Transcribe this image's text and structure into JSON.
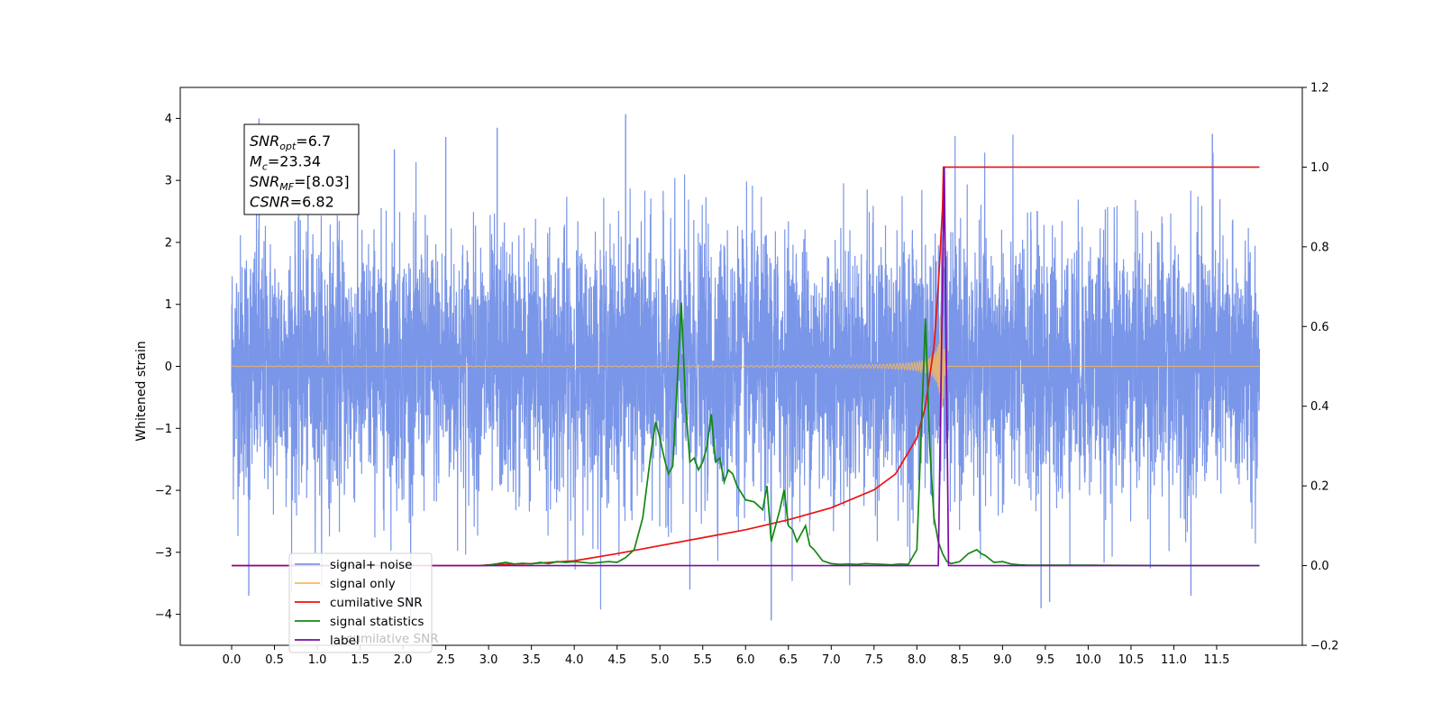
{
  "chart_data": {
    "type": "line",
    "title": "",
    "xlabel": "",
    "ylabel": "Whitened strain",
    "xlim": [
      -0.6,
      12.5
    ],
    "ylim": [
      -4.5,
      4.5
    ],
    "y2lim": [
      -0.2,
      1.2
    ],
    "xticks": [
      "0.0",
      "0.5",
      "1.0",
      "1.5",
      "2.0",
      "2.5",
      "3.0",
      "3.5",
      "4.0",
      "4.5",
      "5.0",
      "5.5",
      "6.0",
      "6.5",
      "7.0",
      "7.5",
      "8.0",
      "8.5",
      "9.0",
      "9.5",
      "10.0",
      "10.5",
      "11.0",
      "11.5"
    ],
    "yticks": [
      "−4",
      "−3",
      "−2",
      "−1",
      "0",
      "1",
      "2",
      "3",
      "4"
    ],
    "y2ticks": [
      "−0.2",
      "0.0",
      "0.2",
      "0.4",
      "0.6",
      "0.8",
      "1.0",
      "1.2"
    ],
    "grid": false,
    "legend_position": "lower-left",
    "annotation": {
      "lines": [
        {
          "name": "SNR",
          "sub": "opt",
          "value": "=6.7"
        },
        {
          "name": "M",
          "sub": "c",
          "value": "=23.34"
        },
        {
          "name": "SNR",
          "sub": "MF",
          "value": "=[8.03]"
        },
        {
          "name": "CSNR",
          "sub": "",
          "value": "=6.82"
        }
      ]
    },
    "legend_ghost": "cumilative SNR",
    "series": [
      {
        "name": "signal+ noise",
        "color": "#7a96e8",
        "axis": "left",
        "kind": "noise",
        "x_range": [
          0.0,
          12.0
        ],
        "typical_amplitude": 2.4,
        "peak_values": [
          {
            "x": 0.32,
            "y": 4.0
          },
          {
            "x": 4.6,
            "y": 4.07
          },
          {
            "x": 11.45,
            "y": 3.75
          },
          {
            "x": 3.1,
            "y": 3.85
          },
          {
            "x": 2.5,
            "y": 3.7
          },
          {
            "x": 1.9,
            "y": 3.5
          },
          {
            "x": 0.2,
            "y": -3.7
          },
          {
            "x": 6.3,
            "y": -4.1
          },
          {
            "x": 9.45,
            "y": -3.9
          },
          {
            "x": 9.55,
            "y": -3.8
          },
          {
            "x": 11.2,
            "y": -3.7
          },
          {
            "x": 5.35,
            "y": -3.6
          }
        ]
      },
      {
        "name": "signal only",
        "color": "#f5b95d",
        "axis": "left",
        "kind": "chirp",
        "x_range": [
          0.0,
          12.0
        ],
        "merger_x": 8.3,
        "peak_amplitude": 1.0
      },
      {
        "name": "cumilative SNR",
        "color": "#ee1111",
        "axis": "right",
        "x": [
          0,
          2.9,
          3.0,
          3.5,
          4.0,
          4.5,
          5.0,
          5.5,
          6.0,
          6.5,
          7.0,
          7.5,
          7.75,
          8.0,
          8.1,
          8.2,
          8.25,
          8.3,
          8.31,
          9.0,
          10.0,
          11.0,
          11.5,
          12.0
        ],
        "y": [
          0,
          0,
          0.002,
          0.005,
          0.012,
          0.03,
          0.05,
          0.07,
          0.09,
          0.115,
          0.145,
          0.19,
          0.23,
          0.32,
          0.4,
          0.55,
          0.7,
          0.9,
          1.0,
          1.0,
          1.0,
          1.0,
          1.0,
          1.0
        ]
      },
      {
        "name": "signal statistics",
        "color": "#118811",
        "axis": "right",
        "x": [
          2.9,
          3.0,
          3.2,
          3.3,
          3.4,
          3.5,
          3.6,
          3.7,
          3.8,
          3.9,
          4.0,
          4.2,
          4.4,
          4.5,
          4.6,
          4.7,
          4.8,
          4.9,
          4.95,
          5.0,
          5.05,
          5.1,
          5.15,
          5.2,
          5.25,
          5.3,
          5.35,
          5.4,
          5.45,
          5.5,
          5.55,
          5.6,
          5.65,
          5.7,
          5.75,
          5.8,
          5.85,
          5.9,
          6.0,
          6.1,
          6.2,
          6.25,
          6.3,
          6.35,
          6.4,
          6.45,
          6.5,
          6.55,
          6.6,
          6.7,
          6.75,
          6.8,
          6.9,
          7.0,
          7.1,
          7.2,
          7.3,
          7.4,
          7.5,
          7.6,
          7.7,
          7.8,
          7.9,
          8.0,
          8.1,
          8.15,
          8.2,
          8.25,
          8.3,
          8.35,
          8.4,
          8.5,
          8.6,
          8.7,
          8.75,
          8.8,
          8.9,
          9.0,
          9.1,
          9.2,
          9.3,
          9.5,
          10.0,
          11.0,
          12.0
        ],
        "y": [
          0.0,
          0.001,
          0.008,
          0.004,
          0.006,
          0.004,
          0.008,
          0.005,
          0.01,
          0.008,
          0.01,
          0.006,
          0.01,
          0.008,
          0.02,
          0.04,
          0.12,
          0.29,
          0.36,
          0.32,
          0.27,
          0.23,
          0.25,
          0.45,
          0.66,
          0.4,
          0.26,
          0.27,
          0.24,
          0.26,
          0.3,
          0.38,
          0.26,
          0.27,
          0.21,
          0.24,
          0.23,
          0.2,
          0.165,
          0.16,
          0.14,
          0.2,
          0.06,
          0.1,
          0.14,
          0.19,
          0.1,
          0.09,
          0.06,
          0.1,
          0.05,
          0.04,
          0.012,
          0.005,
          0.003,
          0.004,
          0.003,
          0.005,
          0.004,
          0.003,
          0.002,
          0.004,
          0.003,
          0.04,
          0.62,
          0.3,
          0.12,
          0.06,
          0.03,
          0.01,
          0.005,
          0.01,
          0.03,
          0.04,
          0.03,
          0.025,
          0.008,
          0.01,
          0.004,
          0.002,
          0.001,
          0.001,
          0.001,
          0.0,
          0.0
        ]
      },
      {
        "name": "label",
        "color": "#7d0aa6",
        "axis": "right",
        "x": [
          0.0,
          8.25,
          8.32,
          8.37,
          12.0
        ],
        "y": [
          0.0,
          0.0,
          1.0,
          0.0,
          0.0
        ]
      }
    ]
  }
}
